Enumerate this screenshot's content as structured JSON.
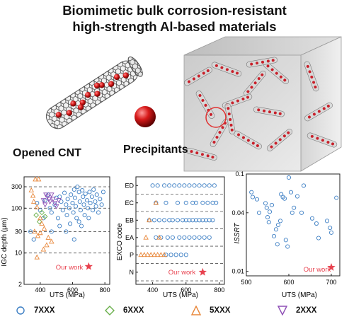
{
  "title_line1": "Biomimetic bulk corrosion-resistant",
  "title_line2": "high-strength Al-based materials",
  "label_cnt": "Opened CNT",
  "label_precip": "Precipitants",
  "colors": {
    "s7xxx": "#3d7fc4",
    "s6xxx": "#6ab04c",
    "s5xxx": "#e8873a",
    "s2xxx": "#8e4fb5",
    "ours": "#e8414e"
  },
  "legend": [
    {
      "name": "7XXX",
      "marker": "circle-icon",
      "color": "#3d7fc4"
    },
    {
      "name": "6XXX",
      "marker": "diamond-icon",
      "color": "#6ab04c"
    },
    {
      "name": "5XXX",
      "marker": "triangle-up-icon",
      "color": "#e8873a"
    },
    {
      "name": "2XXX",
      "marker": "triangle-down-icon",
      "color": "#8e4fb5"
    }
  ],
  "chart_data": [
    {
      "id": "igc",
      "type": "scatter",
      "xlabel": "UTS (MPa)",
      "ylabel": "IGC depth (μm)",
      "xlim": [
        300,
        830
      ],
      "ylim": [
        2,
        500
      ],
      "log_y": true,
      "xticks": [
        "400",
        "600",
        "800"
      ],
      "yticks": [
        "2",
        "10",
        "30",
        "100",
        "300"
      ],
      "ytick_values": [
        2,
        10,
        30,
        100,
        300
      ],
      "dashed_lines": [
        10,
        30,
        100,
        300
      ],
      "annotation": "Our work",
      "ours": {
        "x": 700,
        "y": 5
      },
      "series": [
        {
          "marker": "circle",
          "points": [
            [
              340,
              30
            ],
            [
              360,
              20
            ],
            [
              380,
              130
            ],
            [
              400,
              90
            ],
            [
              420,
              60
            ],
            [
              430,
              150
            ],
            [
              450,
              200
            ],
            [
              460,
              100
            ],
            [
              470,
              80
            ],
            [
              490,
              120
            ],
            [
              500,
              170
            ],
            [
              510,
              60
            ],
            [
              520,
              180
            ],
            [
              530,
              140
            ],
            [
              540,
              90
            ],
            [
              550,
              220
            ],
            [
              560,
              120
            ],
            [
              565,
              70
            ],
            [
              570,
              160
            ],
            [
              580,
              100
            ],
            [
              585,
              45
            ],
            [
              590,
              200
            ],
            [
              600,
              130
            ],
            [
              605,
              80
            ],
            [
              610,
              260
            ],
            [
              615,
              170
            ],
            [
              620,
              110
            ],
            [
              625,
              60
            ],
            [
              630,
              300
            ],
            [
              640,
              230
            ],
            [
              645,
              140
            ],
            [
              650,
              90
            ],
            [
              655,
              40
            ],
            [
              660,
              250
            ],
            [
              665,
              180
            ],
            [
              670,
              120
            ],
            [
              675,
              70
            ],
            [
              680,
              210
            ],
            [
              690,
              150
            ],
            [
              695,
              100
            ],
            [
              700,
              60
            ],
            [
              705,
              230
            ],
            [
              710,
              130
            ],
            [
              720,
              180
            ],
            [
              725,
              90
            ],
            [
              730,
              260
            ],
            [
              740,
              140
            ],
            [
              745,
              110
            ],
            [
              750,
              200
            ],
            [
              760,
              80
            ],
            [
              770,
              160
            ],
            [
              780,
              120
            ],
            [
              790,
              230
            ],
            [
              610,
              20
            ],
            [
              560,
              30
            ],
            [
              520,
              40
            ],
            [
              470,
              30
            ],
            [
              640,
              50
            ]
          ]
        },
        {
          "marker": "diamond",
          "points": [
            [
              375,
              70
            ],
            [
              395,
              50
            ],
            [
              410,
              80
            ],
            [
              430,
              65
            ]
          ]
        },
        {
          "marker": "triangle-up",
          "points": [
            [
              345,
              250
            ],
            [
              355,
              190
            ],
            [
              370,
              440
            ],
            [
              390,
              440
            ],
            [
              360,
              140
            ],
            [
              380,
              105
            ],
            [
              400,
              60
            ],
            [
              410,
              45
            ],
            [
              425,
              35
            ],
            [
              380,
              8
            ],
            [
              420,
              12
            ],
            [
              440,
              15
            ],
            [
              400,
              28
            ],
            [
              450,
              22
            ],
            [
              470,
              18
            ],
            [
              365,
              30
            ],
            [
              385,
              24
            ]
          ]
        },
        {
          "marker": "triangle-down",
          "points": [
            [
              420,
              150
            ],
            [
              445,
              180
            ],
            [
              460,
              140
            ],
            [
              470,
              200
            ],
            [
              480,
              160
            ],
            [
              490,
              130
            ],
            [
              500,
              110
            ],
            [
              430,
              120
            ],
            [
              455,
              160
            ],
            [
              515,
              150
            ],
            [
              435,
              200
            ]
          ]
        }
      ]
    },
    {
      "id": "exco",
      "type": "scatter",
      "xlabel": "UTS (MPa)",
      "ylabel": "EXCO code",
      "xlim": [
        300,
        830
      ],
      "categories": [
        "N",
        "P",
        "EA",
        "EB",
        "EC",
        "ED"
      ],
      "xticks": [
        "400",
        "600",
        "800"
      ],
      "annotation": "Our work",
      "ours": {
        "x": 700,
        "y": "N"
      },
      "series": [
        {
          "marker": "circle",
          "points": [
            [
              400,
              "ED"
            ],
            [
              430,
              "ED"
            ],
            [
              470,
              "ED"
            ],
            [
              500,
              "ED"
            ],
            [
              530,
              "ED"
            ],
            [
              560,
              "ED"
            ],
            [
              590,
              "ED"
            ],
            [
              620,
              "ED"
            ],
            [
              650,
              "ED"
            ],
            [
              680,
              "ED"
            ],
            [
              710,
              "ED"
            ],
            [
              740,
              "ED"
            ],
            [
              770,
              "ED"
            ],
            [
              420,
              "EC"
            ],
            [
              480,
              "EC"
            ],
            [
              550,
              "EC"
            ],
            [
              600,
              "EC"
            ],
            [
              640,
              "EC"
            ],
            [
              660,
              "EC"
            ],
            [
              700,
              "EC"
            ],
            [
              730,
              "EC"
            ],
            [
              760,
              "EC"
            ],
            [
              780,
              "EC"
            ],
            [
              380,
              "EB"
            ],
            [
              410,
              "EB"
            ],
            [
              440,
              "EB"
            ],
            [
              470,
              "EB"
            ],
            [
              500,
              "EB"
            ],
            [
              520,
              "EB"
            ],
            [
              550,
              "EB"
            ],
            [
              580,
              "EB"
            ],
            [
              600,
              "EB"
            ],
            [
              620,
              "EB"
            ],
            [
              640,
              "EB"
            ],
            [
              660,
              "EB"
            ],
            [
              680,
              "EB"
            ],
            [
              700,
              "EB"
            ],
            [
              720,
              "EB"
            ],
            [
              740,
              "EB"
            ],
            [
              760,
              "EB"
            ],
            [
              420,
              "EA"
            ],
            [
              450,
              "EA"
            ],
            [
              490,
              "EA"
            ],
            [
              520,
              "EA"
            ],
            [
              560,
              "EA"
            ],
            [
              590,
              "EA"
            ],
            [
              620,
              "EA"
            ],
            [
              650,
              "EA"
            ],
            [
              680,
              "EA"
            ],
            [
              710,
              "EA"
            ],
            [
              740,
              "EA"
            ],
            [
              480,
              "P"
            ],
            [
              510,
              "P"
            ],
            [
              540,
              "P"
            ],
            [
              570,
              "P"
            ],
            [
              600,
              "P"
            ]
          ]
        },
        {
          "marker": "triangle-up",
          "points": [
            [
              330,
              "P"
            ],
            [
              350,
              "P"
            ],
            [
              370,
              "P"
            ],
            [
              390,
              "P"
            ],
            [
              410,
              "P"
            ],
            [
              430,
              "P"
            ],
            [
              450,
              "P"
            ],
            [
              470,
              "P"
            ],
            [
              440,
              "EA"
            ],
            [
              380,
              "EB"
            ],
            [
              420,
              "EC"
            ],
            [
              360,
              "EA"
            ]
          ]
        }
      ]
    },
    {
      "id": "issrt",
      "type": "scatter",
      "xlabel": "UTS (MPa)",
      "ylabel": "ISSRT",
      "xlim": [
        500,
        720
      ],
      "ylim": [
        0.009,
        0.1
      ],
      "log_y": true,
      "xticks": [
        "500",
        "600",
        "700"
      ],
      "yticks": [
        "0.01",
        "0.04",
        "0.1"
      ],
      "ytick_values": [
        0.01,
        0.04,
        0.1
      ],
      "annotation": "Our work",
      "ours": {
        "x": 700,
        "y": 0.011
      },
      "series": [
        {
          "marker": "circle",
          "points": [
            [
              512,
              0.065
            ],
            [
              515,
              0.058
            ],
            [
              525,
              0.055
            ],
            [
              530,
              0.04
            ],
            [
              545,
              0.05
            ],
            [
              548,
              0.045
            ],
            [
              550,
              0.036
            ],
            [
              553,
              0.032
            ],
            [
              555,
              0.041
            ],
            [
              560,
              0.048
            ],
            [
              565,
              0.023
            ],
            [
              570,
              0.027
            ],
            [
              573,
              0.019
            ],
            [
              575,
              0.03
            ],
            [
              580,
              0.033
            ],
            [
              582,
              0.062
            ],
            [
              586,
              0.058
            ],
            [
              590,
              0.056
            ],
            [
              593,
              0.021
            ],
            [
              597,
              0.018
            ],
            [
              600,
              0.092
            ],
            [
              605,
              0.065
            ],
            [
              608,
              0.04
            ],
            [
              612,
              0.045
            ],
            [
              620,
              0.059
            ],
            [
              630,
              0.04
            ],
            [
              635,
              0.076
            ],
            [
              655,
              0.035
            ],
            [
              665,
              0.031
            ],
            [
              670,
              0.022
            ],
            [
              690,
              0.033
            ],
            [
              697,
              0.028
            ],
            [
              700,
              0.025
            ],
            [
              712,
              0.057
            ]
          ]
        }
      ]
    }
  ]
}
